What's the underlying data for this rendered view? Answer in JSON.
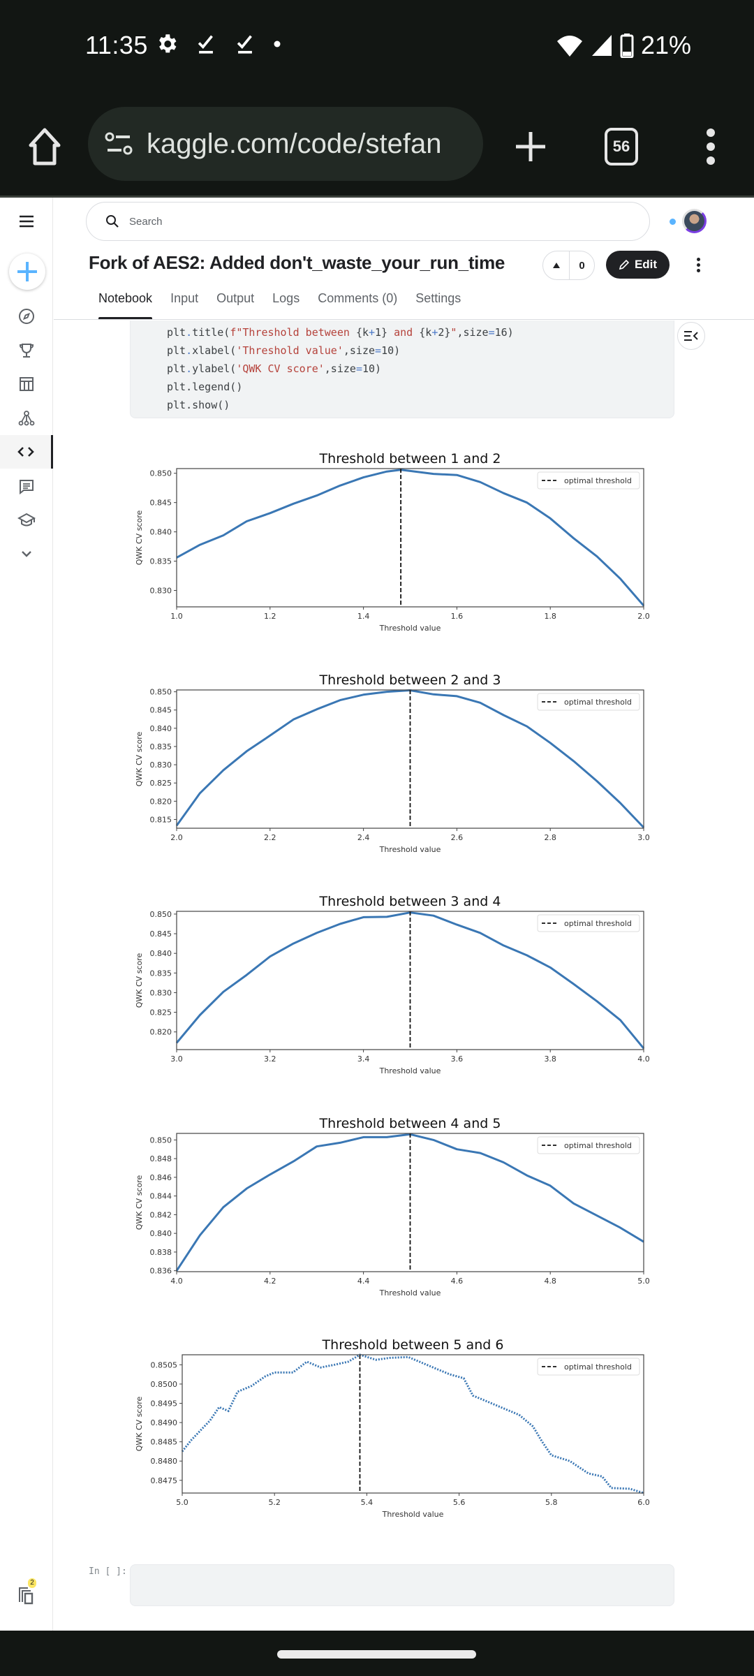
{
  "status_bar": {
    "time": "11:35",
    "battery": "21%",
    "icons_left": [
      "gear-icon",
      "download-done-icon",
      "download-done-icon",
      "dot-icon"
    ],
    "icons_right": [
      "wifi-icon",
      "signal-icon",
      "battery-icon"
    ]
  },
  "browser": {
    "url": "kaggle.com/code/stefan",
    "tab_count": "56"
  },
  "kaggle": {
    "search_placeholder": "Search",
    "notebook_title": "Fork of AES2: Added don't_waste_your_run_time",
    "vote_count": "0",
    "edit_label": "Edit",
    "tabs": [
      {
        "label": "Notebook",
        "active": true
      },
      {
        "label": "Input"
      },
      {
        "label": "Output"
      },
      {
        "label": "Logs"
      },
      {
        "label": "Comments (0)"
      },
      {
        "label": "Settings"
      }
    ],
    "sidebar_icons": [
      "menu-icon",
      "create-icon",
      "explore-icon",
      "competitions-icon",
      "datasets-icon",
      "models-icon",
      "code-icon",
      "discussions-icon",
      "learn-icon",
      "more-icon"
    ],
    "notifications_badge": "2",
    "empty_cell_prompt": "In [ ]:"
  },
  "code_cell": {
    "lines": [
      "plt.title(f\"Threshold between {k+1} and {k+2}\",size=16)",
      "plt.xlabel('Threshold value',size=10)",
      "plt.ylabel('QWK CV score',size=10)",
      "plt.legend()",
      "plt.show()"
    ]
  },
  "colors": {
    "line": "#3a77b4",
    "page_bg": "#ffffff",
    "code_bg": "#f1f3f4",
    "status_bg": "#121613",
    "accent_blue": "#20beff"
  },
  "chart_data": [
    {
      "type": "line",
      "title": "Threshold between 1 and 2",
      "xlabel": "Threshold value",
      "ylabel": "QWK CV score",
      "legend": [
        "optimal threshold"
      ],
      "legend_position": "upper right",
      "xlim": [
        1.0,
        2.0
      ],
      "ylim": [
        0.8272,
        0.8508
      ],
      "xticks": [
        1.0,
        1.2,
        1.4,
        1.6,
        1.8,
        2.0
      ],
      "yticks": [
        0.83,
        0.835,
        0.84,
        0.845,
        0.85
      ],
      "ytick_labels": [
        "0.830",
        "0.835",
        "0.840",
        "0.845",
        "0.850"
      ],
      "optimal_threshold": 1.48,
      "x": [
        1.0,
        1.05,
        1.1,
        1.15,
        1.2,
        1.25,
        1.3,
        1.35,
        1.4,
        1.45,
        1.48,
        1.5,
        1.55,
        1.6,
        1.65,
        1.7,
        1.75,
        1.8,
        1.85,
        1.9,
        1.95,
        2.0
      ],
      "values": [
        0.8356,
        0.8378,
        0.8394,
        0.8418,
        0.8432,
        0.8448,
        0.8462,
        0.8479,
        0.8493,
        0.8503,
        0.8506,
        0.8504,
        0.8499,
        0.8497,
        0.8485,
        0.8466,
        0.845,
        0.8423,
        0.8389,
        0.8358,
        0.832,
        0.8274
      ]
    },
    {
      "type": "line",
      "title": "Threshold between 2 and 3",
      "xlabel": "Threshold value",
      "ylabel": "QWK CV score",
      "legend": [
        "optimal threshold"
      ],
      "legend_position": "upper right",
      "xlim": [
        2.0,
        3.0
      ],
      "ylim": [
        0.8126,
        0.8505
      ],
      "xticks": [
        2.0,
        2.2,
        2.4,
        2.6,
        2.8,
        3.0
      ],
      "yticks": [
        0.815,
        0.82,
        0.825,
        0.83,
        0.835,
        0.84,
        0.845,
        0.85
      ],
      "ytick_labels": [
        "0.815",
        "0.820",
        "0.825",
        "0.830",
        "0.835",
        "0.840",
        "0.845",
        "0.850"
      ],
      "optimal_threshold": 2.5,
      "x": [
        2.0,
        2.05,
        2.1,
        2.15,
        2.2,
        2.25,
        2.3,
        2.35,
        2.4,
        2.45,
        2.5,
        2.55,
        2.6,
        2.65,
        2.7,
        2.75,
        2.8,
        2.85,
        2.9,
        2.95,
        3.0
      ],
      "values": [
        0.8133,
        0.8222,
        0.8285,
        0.8337,
        0.838,
        0.8424,
        0.8452,
        0.8477,
        0.8492,
        0.85,
        0.8504,
        0.8493,
        0.8488,
        0.847,
        0.8436,
        0.8405,
        0.836,
        0.831,
        0.8255,
        0.8195,
        0.8128
      ]
    },
    {
      "type": "line",
      "title": "Threshold between 3 and 4",
      "xlabel": "Threshold value",
      "ylabel": "QWK CV score",
      "legend": [
        "optimal threshold"
      ],
      "legend_position": "upper right",
      "xlim": [
        3.0,
        4.0
      ],
      "ylim": [
        0.8155,
        0.8507
      ],
      "xticks": [
        3.0,
        3.2,
        3.4,
        3.6,
        3.8,
        4.0
      ],
      "yticks": [
        0.82,
        0.825,
        0.83,
        0.835,
        0.84,
        0.845,
        0.85
      ],
      "ytick_labels": [
        "0.820",
        "0.825",
        "0.830",
        "0.835",
        "0.840",
        "0.845",
        "0.850"
      ],
      "optimal_threshold": 3.5,
      "x": [
        3.0,
        3.05,
        3.1,
        3.15,
        3.2,
        3.25,
        3.3,
        3.35,
        3.4,
        3.45,
        3.5,
        3.55,
        3.6,
        3.65,
        3.7,
        3.75,
        3.8,
        3.85,
        3.9,
        3.95,
        4.0
      ],
      "values": [
        0.8172,
        0.8243,
        0.8302,
        0.8345,
        0.8392,
        0.8425,
        0.8452,
        0.8475,
        0.8492,
        0.8493,
        0.8504,
        0.8496,
        0.8473,
        0.8452,
        0.842,
        0.8395,
        0.8364,
        0.8322,
        0.8278,
        0.823,
        0.8158
      ]
    },
    {
      "type": "line",
      "title": "Threshold between 4 and 5",
      "xlabel": "Threshold value",
      "ylabel": "QWK CV score",
      "legend": [
        "optimal threshold"
      ],
      "legend_position": "upper right",
      "xlim": [
        4.0,
        5.0
      ],
      "ylim": [
        0.8359,
        0.8507
      ],
      "xticks": [
        4.0,
        4.2,
        4.4,
        4.6,
        4.8,
        5.0
      ],
      "yticks": [
        0.836,
        0.838,
        0.84,
        0.842,
        0.844,
        0.846,
        0.848,
        0.85
      ],
      "ytick_labels": [
        "0.836",
        "0.838",
        "0.840",
        "0.842",
        "0.844",
        "0.846",
        "0.848",
        "0.850"
      ],
      "optimal_threshold": 4.5,
      "x": [
        4.0,
        4.05,
        4.1,
        4.15,
        4.2,
        4.25,
        4.3,
        4.35,
        4.4,
        4.45,
        4.5,
        4.55,
        4.6,
        4.65,
        4.7,
        4.75,
        4.8,
        4.85,
        4.9,
        4.95,
        5.0
      ],
      "values": [
        0.836,
        0.8398,
        0.8428,
        0.8448,
        0.8463,
        0.8477,
        0.8493,
        0.8497,
        0.8503,
        0.8503,
        0.8506,
        0.85,
        0.849,
        0.8486,
        0.8476,
        0.8462,
        0.8451,
        0.8432,
        0.8419,
        0.8406,
        0.8391
      ]
    },
    {
      "type": "scatter",
      "title": "Threshold between 5 and 6",
      "xlabel": "Threshold value",
      "ylabel": "QWK CV score",
      "legend": [
        "optimal threshold"
      ],
      "legend_position": "upper right",
      "xlim": [
        5.0,
        6.0
      ],
      "ylim": [
        0.84717,
        0.85076
      ],
      "xticks": [
        5.0,
        5.2,
        5.4,
        5.6,
        5.8,
        6.0
      ],
      "yticks": [
        0.8475,
        0.848,
        0.8485,
        0.849,
        0.8495,
        0.85,
        0.8505
      ],
      "ytick_labels": [
        "0.8475",
        "0.8480",
        "0.8485",
        "0.8490",
        "0.8495",
        "0.8500",
        "0.8505"
      ],
      "optimal_threshold": 5.385,
      "x": [
        5.0,
        5.02,
        5.04,
        5.06,
        5.08,
        5.1,
        5.12,
        5.15,
        5.18,
        5.2,
        5.24,
        5.27,
        5.3,
        5.33,
        5.36,
        5.385,
        5.42,
        5.45,
        5.49,
        5.52,
        5.55,
        5.58,
        5.61,
        5.63,
        5.66,
        5.7,
        5.73,
        5.76,
        5.78,
        5.8,
        5.84,
        5.88,
        5.91,
        5.93,
        5.97,
        6.0
      ],
      "values": [
        0.84825,
        0.84855,
        0.8488,
        0.84905,
        0.8494,
        0.8493,
        0.8498,
        0.84995,
        0.8502,
        0.8503,
        0.8503,
        0.85058,
        0.85043,
        0.8505,
        0.85058,
        0.85076,
        0.85063,
        0.85068,
        0.8507,
        0.85055,
        0.8504,
        0.85025,
        0.85015,
        0.8497,
        0.84955,
        0.84935,
        0.8492,
        0.8489,
        0.8485,
        0.84815,
        0.848,
        0.84768,
        0.8476,
        0.8473,
        0.84728,
        0.84717
      ]
    }
  ]
}
